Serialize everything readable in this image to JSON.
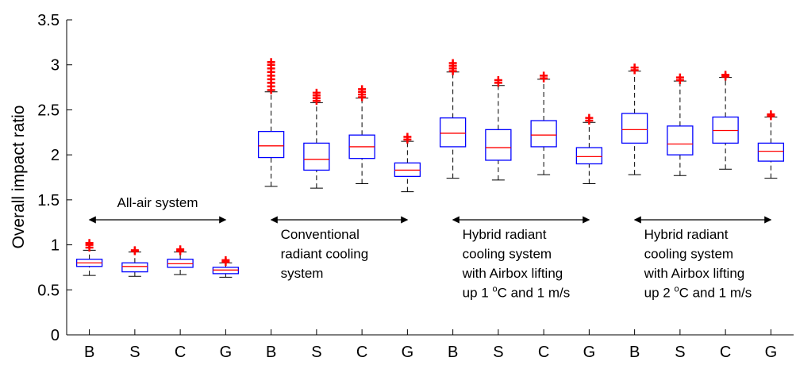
{
  "chart_data": {
    "type": "box",
    "y_label": "Overall impact ratio",
    "categories": [
      "B",
      "S",
      "C",
      "G",
      "B",
      "S",
      "C",
      "G",
      "B",
      "S",
      "C",
      "G",
      "B",
      "S",
      "C",
      "G"
    ],
    "boxes": [
      {
        "whislo": 0.66,
        "q1": 0.76,
        "med": 0.8,
        "q3": 0.84,
        "whishi": 0.94,
        "fliers": [
          0.97,
          1.0,
          1.02
        ]
      },
      {
        "whislo": 0.65,
        "q1": 0.7,
        "med": 0.76,
        "q3": 0.8,
        "whishi": 0.92,
        "fliers": [
          0.93,
          0.94
        ]
      },
      {
        "whislo": 0.67,
        "q1": 0.75,
        "med": 0.79,
        "q3": 0.84,
        "whishi": 0.92,
        "fliers": [
          0.93,
          0.95
        ]
      },
      {
        "whislo": 0.64,
        "q1": 0.68,
        "med": 0.72,
        "q3": 0.75,
        "whishi": 0.8,
        "fliers": [
          0.81,
          0.83
        ]
      },
      {
        "whislo": 1.65,
        "q1": 1.97,
        "med": 2.1,
        "q3": 2.26,
        "whishi": 2.7,
        "fliers": [
          2.72,
          2.76,
          2.8,
          2.84,
          2.88,
          2.92,
          2.96,
          3.0,
          3.03
        ]
      },
      {
        "whislo": 1.63,
        "q1": 1.83,
        "med": 1.95,
        "q3": 2.13,
        "whishi": 2.58,
        "fliers": [
          2.6,
          2.63,
          2.66,
          2.69
        ]
      },
      {
        "whislo": 1.68,
        "q1": 1.96,
        "med": 2.09,
        "q3": 2.22,
        "whishi": 2.63,
        "fliers": [
          2.64,
          2.67,
          2.7,
          2.73
        ]
      },
      {
        "whislo": 1.59,
        "q1": 1.76,
        "med": 1.83,
        "q3": 1.91,
        "whishi": 2.15,
        "fliers": [
          2.17,
          2.2
        ]
      },
      {
        "whislo": 1.74,
        "q1": 2.09,
        "med": 2.24,
        "q3": 2.41,
        "whishi": 2.92,
        "fliers": [
          2.93,
          2.96,
          2.99,
          3.02
        ]
      },
      {
        "whislo": 1.72,
        "q1": 1.94,
        "med": 2.08,
        "q3": 2.28,
        "whishi": 2.77,
        "fliers": [
          2.8,
          2.83
        ]
      },
      {
        "whislo": 1.78,
        "q1": 2.09,
        "med": 2.22,
        "q3": 2.38,
        "whishi": 2.84,
        "fliers": [
          2.85,
          2.88
        ]
      },
      {
        "whislo": 1.68,
        "q1": 1.9,
        "med": 1.98,
        "q3": 2.08,
        "whishi": 2.36,
        "fliers": [
          2.38,
          2.41
        ]
      },
      {
        "whislo": 1.78,
        "q1": 2.13,
        "med": 2.28,
        "q3": 2.46,
        "whishi": 2.93,
        "fliers": [
          2.94,
          2.97
        ]
      },
      {
        "whislo": 1.77,
        "q1": 2.0,
        "med": 2.12,
        "q3": 2.32,
        "whishi": 2.82,
        "fliers": [
          2.83,
          2.86
        ]
      },
      {
        "whislo": 1.84,
        "q1": 2.13,
        "med": 2.27,
        "q3": 2.42,
        "whishi": 2.86,
        "fliers": [
          2.87,
          2.89
        ]
      },
      {
        "whislo": 1.74,
        "q1": 1.93,
        "med": 2.04,
        "q3": 2.13,
        "whishi": 2.42,
        "fliers": [
          2.43,
          2.45
        ]
      }
    ],
    "box_color": "#0000ff",
    "median_color": "#ff0000",
    "whisker_color": "#000000",
    "flier_color": "#ff0000",
    "ylim": [
      0,
      3.5
    ],
    "yticks": [
      0,
      0.5,
      1,
      1.5,
      2,
      2.5,
      3,
      3.5
    ],
    "annotations": [
      {
        "lines": [
          "All-air system"
        ]
      },
      {
        "lines": [
          "Conventional",
          "radiant cooling",
          "system"
        ]
      },
      {
        "lines": [
          "Hybrid radiant",
          "cooling system",
          "with Airbox lifting",
          [
            "up 1 ",
            "o",
            "C and 1 m/s"
          ]
        ]
      },
      {
        "lines": [
          "Hybrid radiant",
          "cooling system",
          "with Airbox lifting",
          [
            "up 2 ",
            "o",
            "C and 1 m/s"
          ]
        ]
      }
    ]
  }
}
